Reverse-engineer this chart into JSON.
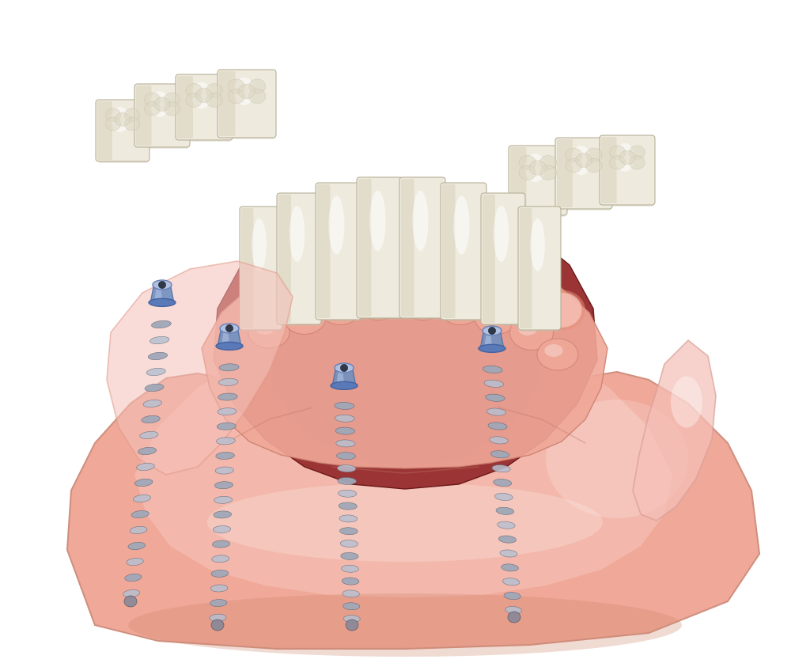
{
  "background_color": "#ffffff",
  "gum_outer_color": "#f0a898",
  "gum_light_color": "#f5c0b4",
  "gum_mid_color": "#e8907a",
  "gum_dark_color": "#cc6655",
  "tongue_color": "#9b3535",
  "tongue_dark": "#7a2020",
  "tooth_base": "#eeeade",
  "tooth_light": "#f8f6f0",
  "tooth_shadow": "#c8c0a8",
  "tooth_mid": "#ddd8c8",
  "implant_silver": "#a0a8b8",
  "implant_dark": "#707888",
  "implant_thread_light": "#c8d0e0",
  "implant_thread_dark": "#606878",
  "abutment_blue": "#7090c0",
  "abutment_light": "#9ab0d8",
  "abutment_cap": "#b0c0e0",
  "pink_flap": "#f0b0b0",
  "pink_flap_light": "#fad0cc",
  "right_flap": "#f5c0b8"
}
